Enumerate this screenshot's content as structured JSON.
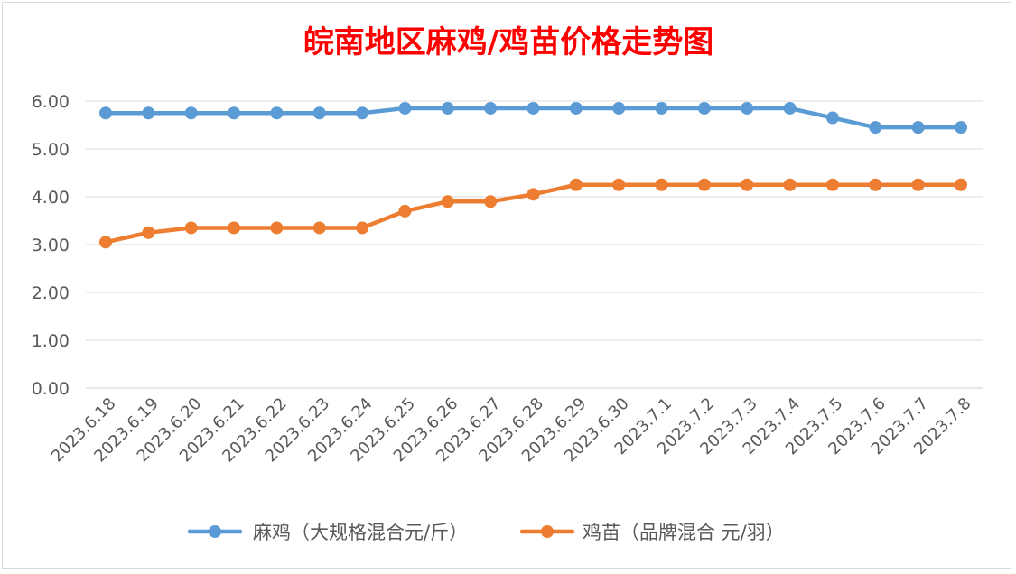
{
  "chart_data": {
    "type": "line",
    "title": "皖南地区麻鸡/鸡苗价格走势图",
    "categories": [
      "2023.6.18",
      "2023.6.19",
      "2023.6.20",
      "2023.6.21",
      "2023.6.22",
      "2023.6.23",
      "2023.6.24",
      "2023.6.25",
      "2023.6.26",
      "2023.6.27",
      "2023.6.28",
      "2023.6.29",
      "2023.6.30",
      "2023.7.1",
      "2023.7.2",
      "2023.7.3",
      "2023.7.4",
      "2023.7.5",
      "2023.7.6",
      "2023.7.7",
      "2023.7.8"
    ],
    "y_ticks": [
      "0.00",
      "1.00",
      "2.00",
      "3.00",
      "4.00",
      "5.00",
      "6.00"
    ],
    "ylim": [
      0,
      6
    ],
    "grid": true,
    "legend_position": "bottom",
    "series": [
      {
        "name": "麻鸡（大规格混合元/斤）",
        "color": "#5b9bd5",
        "values": [
          5.75,
          5.75,
          5.75,
          5.75,
          5.75,
          5.75,
          5.75,
          5.85,
          5.85,
          5.85,
          5.85,
          5.85,
          5.85,
          5.85,
          5.85,
          5.85,
          5.85,
          5.65,
          5.45,
          5.45,
          5.45
        ]
      },
      {
        "name": "鸡苗（品牌混合 元/羽）",
        "color": "#ed7d31",
        "values": [
          3.05,
          3.25,
          3.35,
          3.35,
          3.35,
          3.35,
          3.35,
          3.7,
          3.9,
          3.9,
          4.05,
          4.25,
          4.25,
          4.25,
          4.25,
          4.25,
          4.25,
          4.25,
          4.25,
          4.25,
          4.25
        ]
      }
    ]
  }
}
